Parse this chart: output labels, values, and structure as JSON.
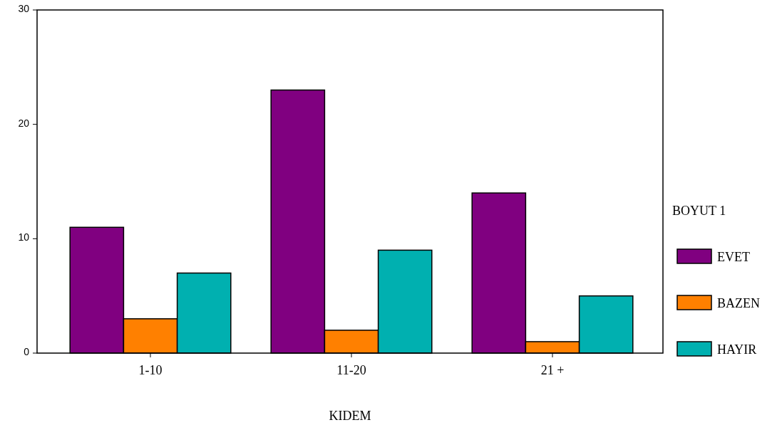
{
  "chart_data": {
    "type": "bar",
    "xlabel": "KIDEM",
    "legend_title": "BOYUT 1",
    "categories": [
      "1-10",
      "11-20",
      "21 +"
    ],
    "series": [
      {
        "name": "EVET",
        "color": "#800080",
        "values": [
          11,
          23,
          14
        ]
      },
      {
        "name": "BAZEN",
        "color": "#ff8000",
        "values": [
          3,
          2,
          1
        ]
      },
      {
        "name": "HAYIR",
        "color": "#00b0b0",
        "values": [
          7,
          9,
          5
        ]
      }
    ],
    "ylim": [
      0,
      30
    ],
    "yticks": [
      0,
      10,
      20,
      30
    ],
    "grid": false,
    "legend": "right"
  }
}
